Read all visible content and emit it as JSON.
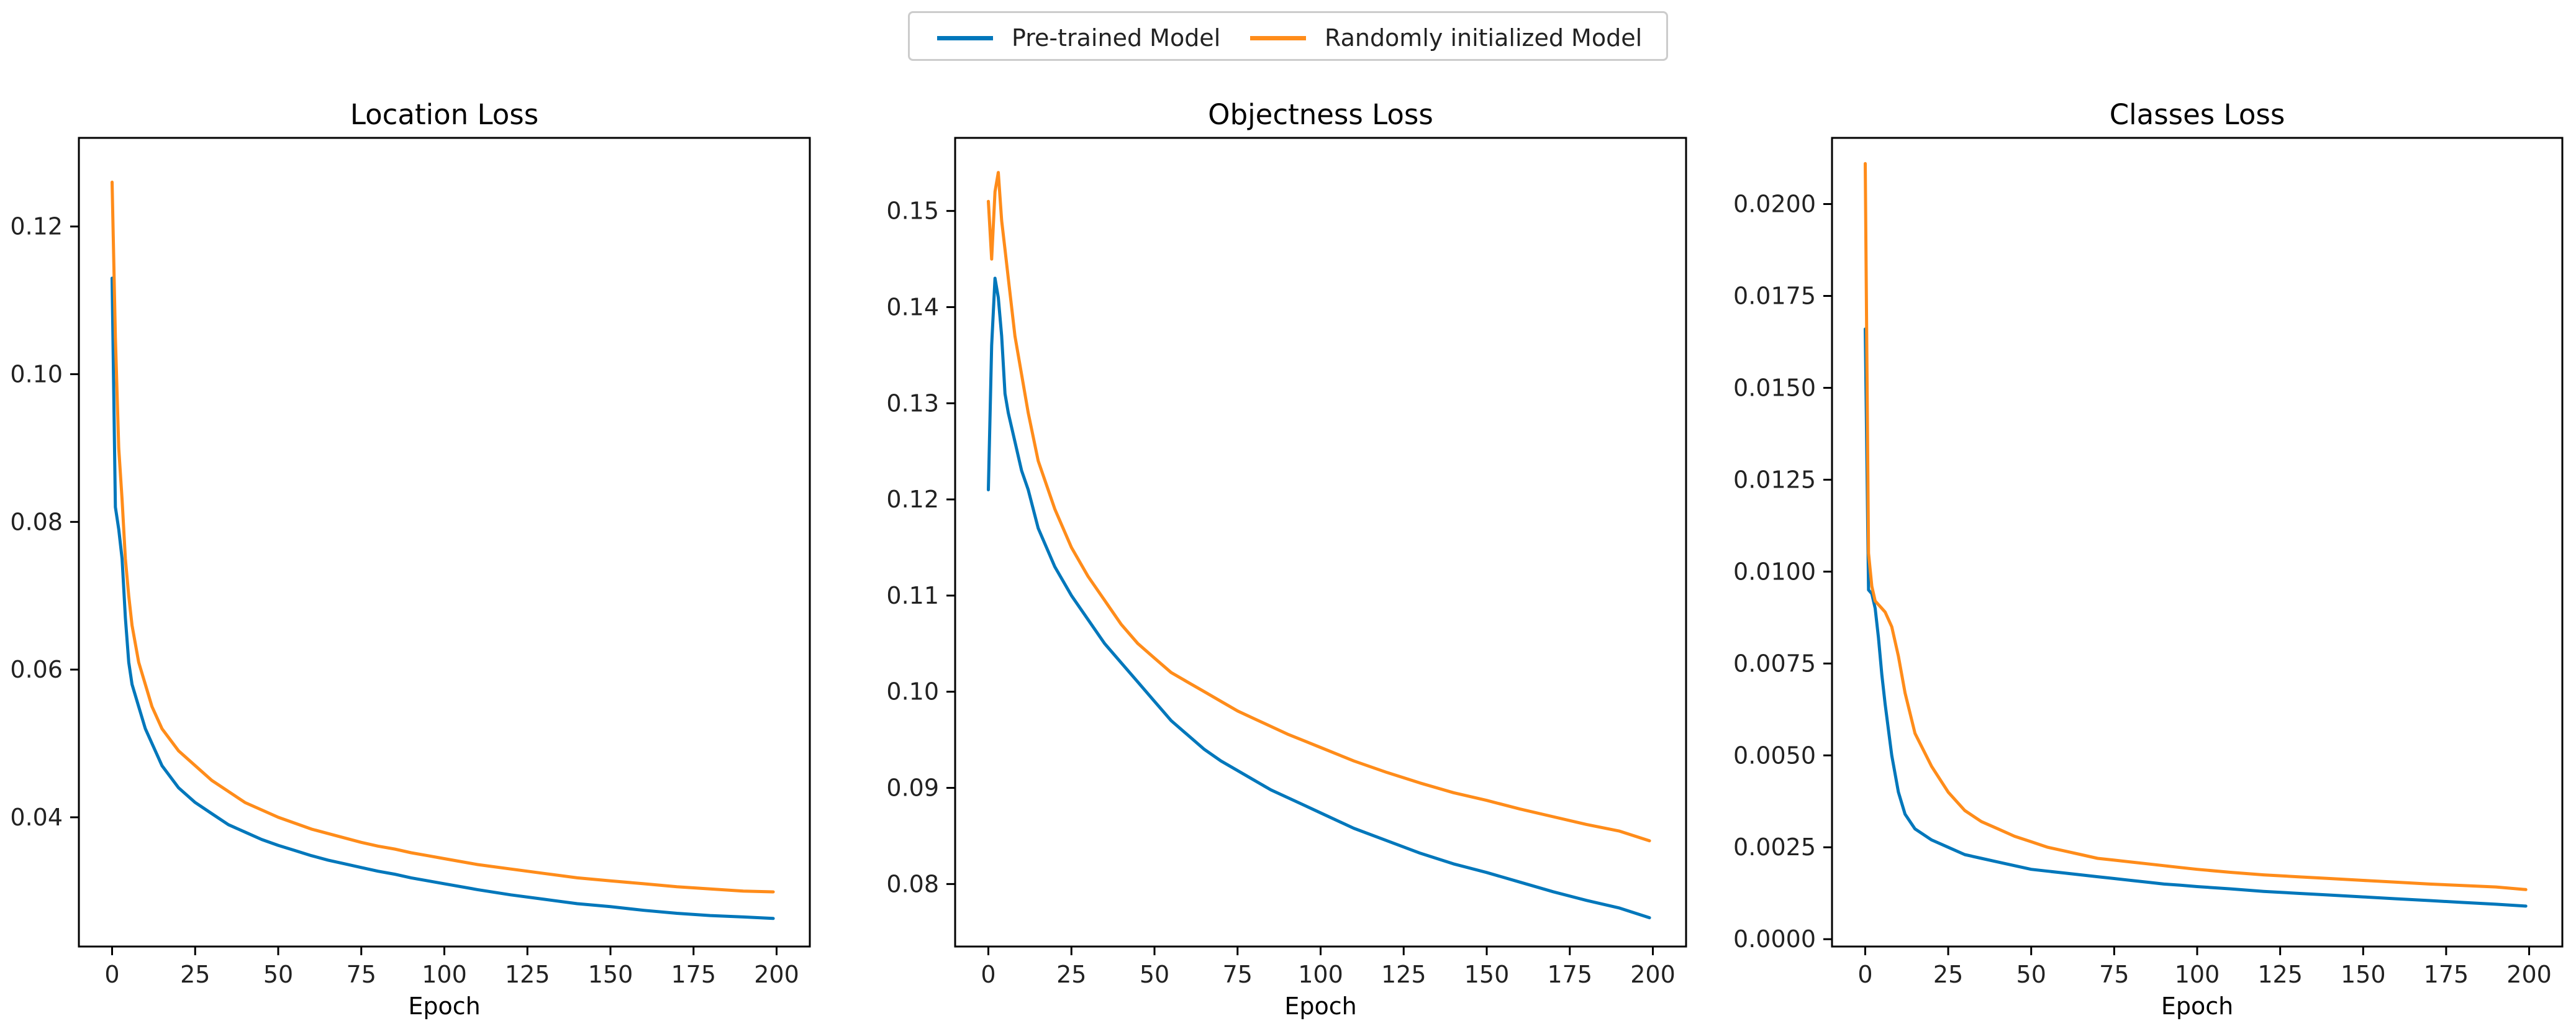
{
  "legend": {
    "entries": [
      {
        "name": "Pre-trained Model",
        "color": "#0077bb"
      },
      {
        "name": "Randomly initialized Model",
        "color": "#ff8c1a"
      }
    ]
  },
  "chart_data": [
    {
      "type": "line",
      "title": "Location Loss",
      "xlabel": "Epoch",
      "ylabel": "",
      "xlim": [
        -10,
        210
      ],
      "ylim": [
        0.0225,
        0.132
      ],
      "xticks": [
        0,
        25,
        50,
        75,
        100,
        125,
        150,
        175,
        200
      ],
      "yticks": [
        0.04,
        0.06,
        0.08,
        0.1,
        0.12
      ],
      "ytick_labels": [
        "0.04",
        "0.06",
        "0.08",
        "0.10",
        "0.12"
      ],
      "series": [
        {
          "name": "Pre-trained Model",
          "x": [
            0,
            1,
            2,
            3,
            4,
            5,
            6,
            8,
            10,
            12,
            15,
            20,
            25,
            30,
            35,
            40,
            45,
            50,
            55,
            60,
            65,
            70,
            75,
            80,
            85,
            90,
            95,
            100,
            110,
            120,
            130,
            140,
            150,
            160,
            170,
            180,
            190,
            199
          ],
          "y": [
            0.113,
            0.082,
            0.079,
            0.075,
            0.067,
            0.061,
            0.058,
            0.055,
            0.052,
            0.05,
            0.047,
            0.044,
            0.042,
            0.0405,
            0.039,
            0.038,
            0.037,
            0.0362,
            0.0355,
            0.0348,
            0.0342,
            0.0337,
            0.0332,
            0.0327,
            0.0323,
            0.0318,
            0.0314,
            0.031,
            0.0302,
            0.0295,
            0.0289,
            0.0283,
            0.0279,
            0.0274,
            0.027,
            0.0267,
            0.0265,
            0.0263
          ]
        },
        {
          "name": "Randomly initialized Model",
          "x": [
            0,
            1,
            2,
            3,
            4,
            5,
            6,
            8,
            10,
            12,
            15,
            20,
            25,
            30,
            35,
            40,
            45,
            50,
            55,
            60,
            65,
            70,
            75,
            80,
            85,
            90,
            95,
            100,
            110,
            120,
            130,
            140,
            150,
            160,
            170,
            180,
            190,
            199
          ],
          "y": [
            0.126,
            0.105,
            0.09,
            0.083,
            0.075,
            0.07,
            0.066,
            0.061,
            0.058,
            0.055,
            0.052,
            0.049,
            0.047,
            0.045,
            0.0435,
            0.042,
            0.041,
            0.04,
            0.0392,
            0.0384,
            0.0378,
            0.0372,
            0.0366,
            0.0361,
            0.0357,
            0.0352,
            0.0348,
            0.0344,
            0.0336,
            0.033,
            0.0324,
            0.0318,
            0.0314,
            0.031,
            0.0306,
            0.0303,
            0.03,
            0.0299
          ]
        }
      ]
    },
    {
      "type": "line",
      "title": "Objectness Loss",
      "xlabel": "Epoch",
      "ylabel": "",
      "xlim": [
        -10,
        210
      ],
      "ylim": [
        0.0735,
        0.1576
      ],
      "xticks": [
        0,
        25,
        50,
        75,
        100,
        125,
        150,
        175,
        200
      ],
      "yticks": [
        0.08,
        0.09,
        0.1,
        0.11,
        0.12,
        0.13,
        0.14,
        0.15
      ],
      "ytick_labels": [
        "0.08",
        "0.09",
        "0.10",
        "0.11",
        "0.12",
        "0.13",
        "0.14",
        "0.15"
      ],
      "series": [
        {
          "name": "Pre-trained Model",
          "x": [
            0,
            1,
            2,
            3,
            4,
            5,
            6,
            8,
            10,
            12,
            15,
            20,
            25,
            30,
            35,
            40,
            45,
            50,
            55,
            60,
            65,
            70,
            75,
            80,
            85,
            90,
            95,
            100,
            110,
            120,
            130,
            140,
            150,
            160,
            170,
            180,
            190,
            199
          ],
          "y": [
            0.121,
            0.136,
            0.143,
            0.141,
            0.137,
            0.131,
            0.129,
            0.126,
            0.123,
            0.121,
            0.117,
            0.113,
            0.11,
            0.1075,
            0.105,
            0.103,
            0.101,
            0.099,
            0.097,
            0.0955,
            0.094,
            0.0928,
            0.0918,
            0.0908,
            0.0898,
            0.089,
            0.0882,
            0.0874,
            0.0858,
            0.0845,
            0.0832,
            0.0821,
            0.0812,
            0.0802,
            0.0792,
            0.0783,
            0.0775,
            0.0765
          ]
        },
        {
          "name": "Randomly initialized Model",
          "x": [
            0,
            1,
            2,
            3,
            4,
            5,
            6,
            8,
            10,
            12,
            15,
            20,
            25,
            30,
            35,
            40,
            45,
            50,
            55,
            60,
            65,
            70,
            75,
            80,
            85,
            90,
            95,
            100,
            110,
            120,
            130,
            140,
            150,
            160,
            170,
            180,
            190,
            199
          ],
          "y": [
            0.151,
            0.145,
            0.152,
            0.154,
            0.149,
            0.146,
            0.143,
            0.137,
            0.133,
            0.129,
            0.124,
            0.119,
            0.115,
            0.112,
            0.1095,
            0.107,
            0.105,
            0.1035,
            0.102,
            0.101,
            0.1,
            0.099,
            0.098,
            0.0972,
            0.0964,
            0.0956,
            0.0949,
            0.0942,
            0.0928,
            0.0916,
            0.0905,
            0.0895,
            0.0887,
            0.0878,
            0.087,
            0.0862,
            0.0855,
            0.0845
          ]
        }
      ]
    },
    {
      "type": "line",
      "title": "Classes Loss",
      "xlabel": "Epoch",
      "ylabel": "",
      "xlim": [
        -10,
        210
      ],
      "ylim": [
        -0.0002,
        0.0218
      ],
      "xticks": [
        0,
        25,
        50,
        75,
        100,
        125,
        150,
        175,
        200
      ],
      "yticks": [
        0.0,
        0.0025,
        0.005,
        0.0075,
        0.01,
        0.0125,
        0.015,
        0.0175,
        0.02
      ],
      "ytick_labels": [
        "0.0000",
        "0.0025",
        "0.0050",
        "0.0075",
        "0.0100",
        "0.0125",
        "0.0150",
        "0.0175",
        "0.0200"
      ],
      "series": [
        {
          "name": "Pre-trained Model",
          "x": [
            0,
            1,
            2,
            3,
            4,
            5,
            6,
            8,
            10,
            12,
            15,
            20,
            25,
            30,
            35,
            40,
            45,
            50,
            55,
            60,
            65,
            70,
            75,
            80,
            85,
            90,
            95,
            100,
            110,
            120,
            130,
            140,
            150,
            160,
            170,
            180,
            190,
            199
          ],
          "y": [
            0.0166,
            0.0095,
            0.0094,
            0.009,
            0.0082,
            0.0072,
            0.0064,
            0.005,
            0.004,
            0.0034,
            0.003,
            0.0027,
            0.0025,
            0.0023,
            0.0022,
            0.0021,
            0.002,
            0.0019,
            0.00185,
            0.0018,
            0.00175,
            0.0017,
            0.00165,
            0.0016,
            0.00155,
            0.0015,
            0.00147,
            0.00143,
            0.00137,
            0.0013,
            0.00125,
            0.0012,
            0.00115,
            0.0011,
            0.00105,
            0.001,
            0.00095,
            0.0009
          ]
        },
        {
          "name": "Randomly initialized Model",
          "x": [
            0,
            1,
            2,
            3,
            4,
            5,
            6,
            8,
            10,
            12,
            15,
            20,
            25,
            30,
            35,
            40,
            45,
            50,
            55,
            60,
            65,
            70,
            75,
            80,
            85,
            90,
            95,
            100,
            110,
            120,
            130,
            140,
            150,
            160,
            170,
            180,
            190,
            199
          ],
          "y": [
            0.0211,
            0.0105,
            0.0096,
            0.0092,
            0.0091,
            0.009,
            0.0089,
            0.0085,
            0.0077,
            0.0067,
            0.0056,
            0.0047,
            0.004,
            0.0035,
            0.0032,
            0.003,
            0.0028,
            0.00265,
            0.0025,
            0.0024,
            0.0023,
            0.0022,
            0.00215,
            0.0021,
            0.00205,
            0.002,
            0.00195,
            0.0019,
            0.00182,
            0.00175,
            0.0017,
            0.00165,
            0.0016,
            0.00155,
            0.0015,
            0.00146,
            0.00142,
            0.00135
          ]
        }
      ]
    }
  ]
}
